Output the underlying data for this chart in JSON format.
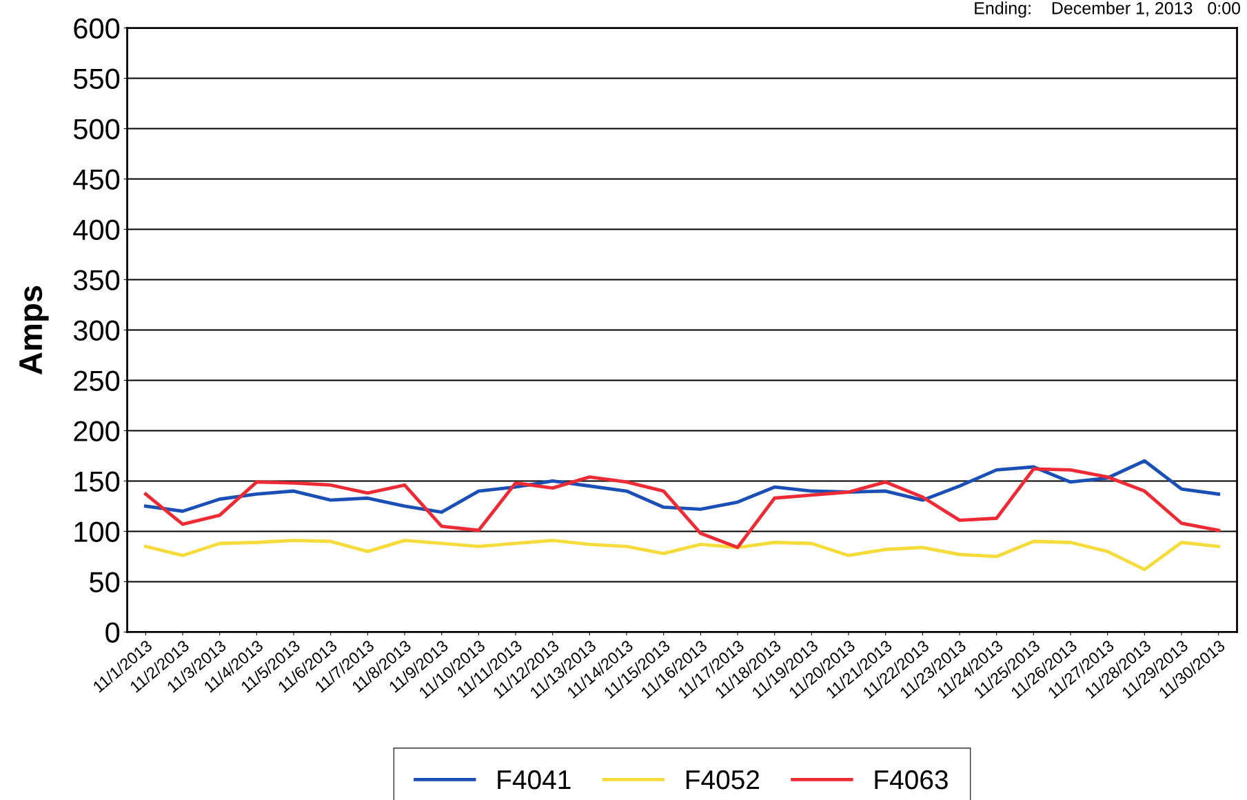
{
  "chart_data": {
    "type": "line",
    "ylabel": "Amps",
    "annotations": [
      "Ending:    December 1, 2013   0:00"
    ],
    "categories": [
      "11/1/2013",
      "11/2/2013",
      "11/3/2013",
      "11/4/2013",
      "11/5/2013",
      "11/6/2013",
      "11/7/2013",
      "11/8/2013",
      "11/9/2013",
      "11/10/2013",
      "11/11/2013",
      "11/12/2013",
      "11/13/2013",
      "11/14/2013",
      "11/15/2013",
      "11/16/2013",
      "11/17/2013",
      "11/18/2013",
      "11/19/2013",
      "11/20/2013",
      "11/21/2013",
      "11/22/2013",
      "11/23/2013",
      "11/24/2013",
      "11/25/2013",
      "11/26/2013",
      "11/27/2013",
      "11/28/2013",
      "11/29/2013",
      "11/30/2013"
    ],
    "series": [
      {
        "name": "F4041",
        "color": "#1a4fb5",
        "values": [
          125,
          120,
          132,
          137,
          140,
          131,
          133,
          125,
          119,
          140,
          144,
          150,
          145,
          140,
          124,
          122,
          129,
          144,
          140,
          139,
          140,
          131,
          145,
          161,
          164,
          149,
          153,
          170,
          142,
          137
        ]
      },
      {
        "name": "F4052",
        "color": "#f5dc3c",
        "values": [
          85,
          76,
          88,
          89,
          91,
          90,
          80,
          91,
          88,
          85,
          88,
          91,
          87,
          85,
          78,
          87,
          84,
          89,
          88,
          76,
          82,
          84,
          77,
          75,
          90,
          89,
          80,
          62,
          89,
          85
        ]
      },
      {
        "name": "F4063",
        "color": "#ee2a34",
        "values": [
          137,
          107,
          116,
          149,
          148,
          146,
          138,
          146,
          105,
          101,
          148,
          143,
          154,
          149,
          140,
          98,
          84,
          133,
          136,
          139,
          149,
          134,
          111,
          113,
          162,
          161,
          154,
          140,
          108,
          101
        ]
      }
    ],
    "ylim": [
      0,
      600
    ],
    "yticks": [
      0,
      50,
      100,
      150,
      200,
      250,
      300,
      350,
      400,
      450,
      500,
      550,
      600
    ],
    "grid": "y",
    "legend": "bottom",
    "marker": "none",
    "line_style": "solid"
  }
}
